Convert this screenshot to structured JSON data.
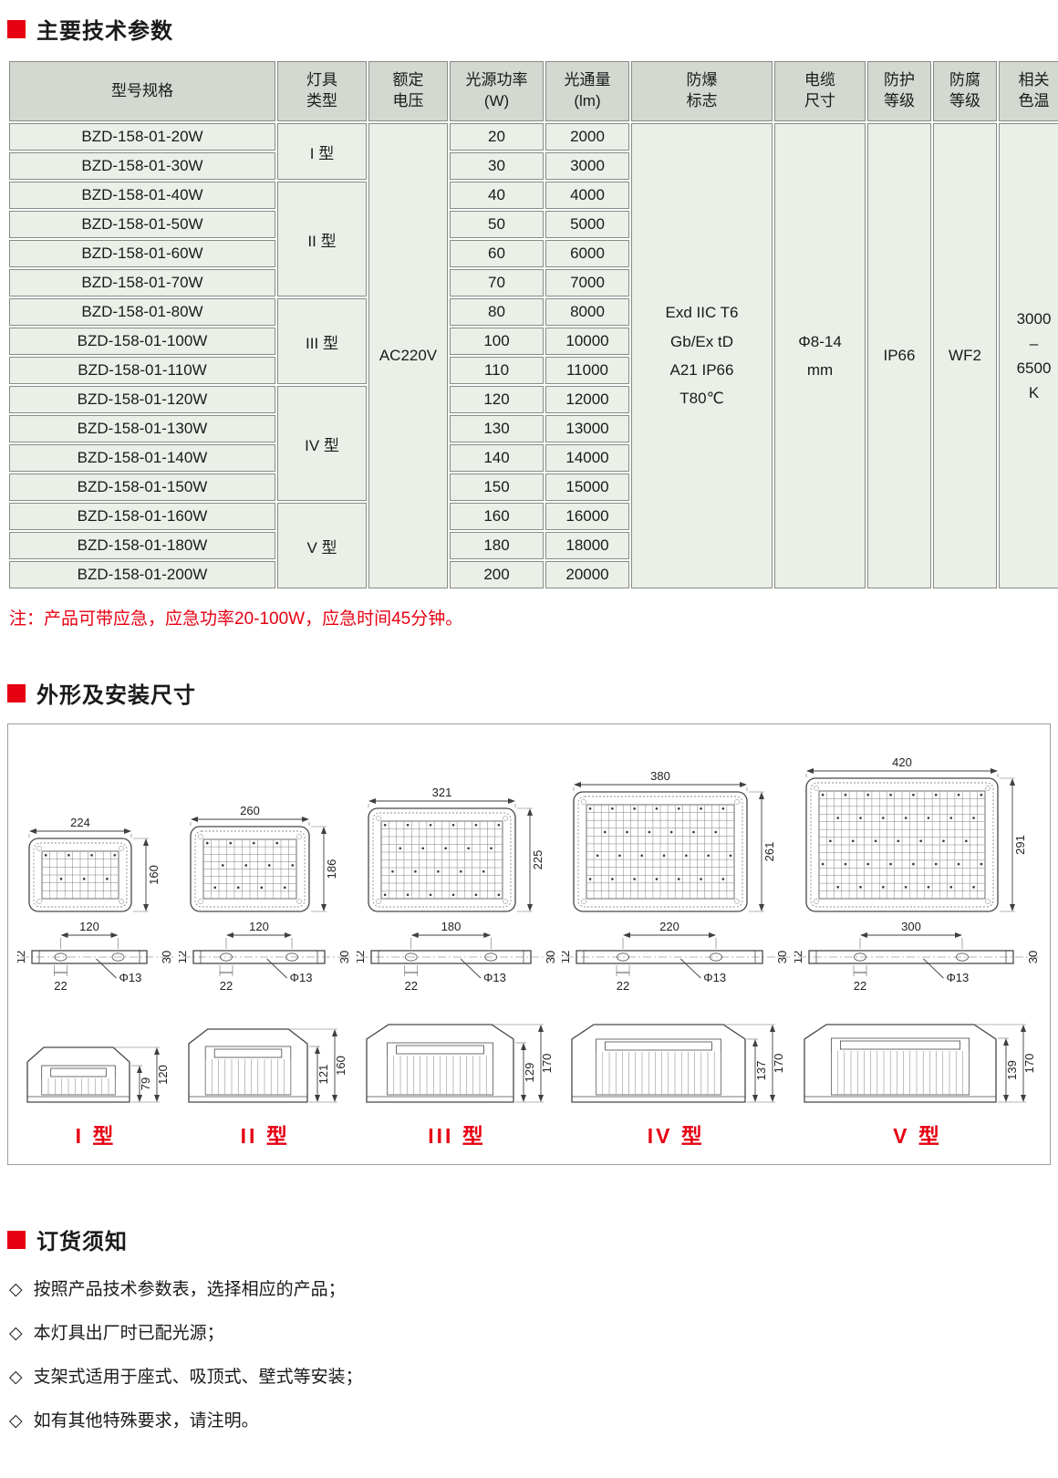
{
  "colors": {
    "accent": "#e60012",
    "table_header_bg": "#d3d8d1",
    "table_cell_bg": "#eaf0e8"
  },
  "page": {
    "section1_title": "主要技术参数",
    "section2_title": "外形及安装尺寸",
    "section3_title": "订货须知",
    "note": "注：产品可带应急，应急功率20-100W，应急时间45分钟。"
  },
  "table": {
    "headers": [
      "型号规格",
      "灯具\n类型",
      "额定\n电压",
      "光源功率\n(W)",
      "光通量\n(lm)",
      "防爆\n标志",
      "电缆\n尺寸",
      "防护\n等级",
      "防腐\n等级",
      "相关\n色温"
    ],
    "rows": [
      {
        "model": "BZD-158-01-20W",
        "power": "20",
        "flux": "2000"
      },
      {
        "model": "BZD-158-01-30W",
        "power": "30",
        "flux": "3000"
      },
      {
        "model": "BZD-158-01-40W",
        "power": "40",
        "flux": "4000"
      },
      {
        "model": "BZD-158-01-50W",
        "power": "50",
        "flux": "5000"
      },
      {
        "model": "BZD-158-01-60W",
        "power": "60",
        "flux": "6000"
      },
      {
        "model": "BZD-158-01-70W",
        "power": "70",
        "flux": "7000"
      },
      {
        "model": "BZD-158-01-80W",
        "power": "80",
        "flux": "8000"
      },
      {
        "model": "BZD-158-01-100W",
        "power": "100",
        "flux": "10000"
      },
      {
        "model": "BZD-158-01-110W",
        "power": "110",
        "flux": "11000"
      },
      {
        "model": "BZD-158-01-120W",
        "power": "120",
        "flux": "12000"
      },
      {
        "model": "BZD-158-01-130W",
        "power": "130",
        "flux": "13000"
      },
      {
        "model": "BZD-158-01-140W",
        "power": "140",
        "flux": "14000"
      },
      {
        "model": "BZD-158-01-150W",
        "power": "150",
        "flux": "15000"
      },
      {
        "model": "BZD-158-01-160W",
        "power": "160",
        "flux": "16000"
      },
      {
        "model": "BZD-158-01-180W",
        "power": "180",
        "flux": "18000"
      },
      {
        "model": "BZD-158-01-200W",
        "power": "200",
        "flux": "20000"
      }
    ],
    "type_groups": [
      {
        "label": "I 型",
        "rows": 2
      },
      {
        "label": "II 型",
        "rows": 4
      },
      {
        "label": "III 型",
        "rows": 3
      },
      {
        "label": "IV 型",
        "rows": 4
      },
      {
        "label": "V 型",
        "rows": 3
      }
    ],
    "shared": {
      "voltage": "AC220V",
      "explosion_mark": "Exd IIC T6\nGb/Ex tD\nA21 IP66\nT80℃",
      "cable_size": "Φ8-14\nmm",
      "protection": "IP66",
      "anti_corrosion": "WF2",
      "color_temp": "3000\n–\n6500\nK"
    }
  },
  "diagram": {
    "types": [
      {
        "label": "I 型",
        "front_w": "224",
        "front_h": "160",
        "bracket_span": "120",
        "plate_t": "12",
        "slot_w": "22",
        "hole": "Φ13",
        "end_w": "30",
        "inner_h": "79",
        "overall_h": "120"
      },
      {
        "label": "II 型",
        "front_w": "260",
        "front_h": "186",
        "bracket_span": "120",
        "plate_t": "12",
        "slot_w": "22",
        "hole": "Φ13",
        "end_w": "30",
        "inner_h": "121",
        "overall_h": "160"
      },
      {
        "label": "III 型",
        "front_w": "321",
        "front_h": "225",
        "bracket_span": "180",
        "plate_t": "12",
        "slot_w": "22",
        "hole": "Φ13",
        "end_w": "30",
        "inner_h": "129",
        "overall_h": "170"
      },
      {
        "label": "IV 型",
        "front_w": "380",
        "front_h": "261",
        "bracket_span": "220",
        "plate_t": "12",
        "slot_w": "22",
        "hole": "Φ13",
        "end_w": "30",
        "inner_h": "137",
        "overall_h": "170"
      },
      {
        "label": "V 型",
        "front_w": "420",
        "front_h": "291",
        "bracket_span": "300",
        "plate_t": "12",
        "slot_w": "22",
        "hole": "Φ13",
        "end_w": "30",
        "inner_h": "139",
        "overall_h": "170"
      }
    ]
  },
  "ordering": {
    "bullet": "◇",
    "items": [
      "按照产品技术参数表，选择相应的产品；",
      "本灯具出厂时已配光源；",
      "支架式适用于座式、吸顶式、壁式等安装；",
      "如有其他特殊要求，请注明。"
    ]
  }
}
